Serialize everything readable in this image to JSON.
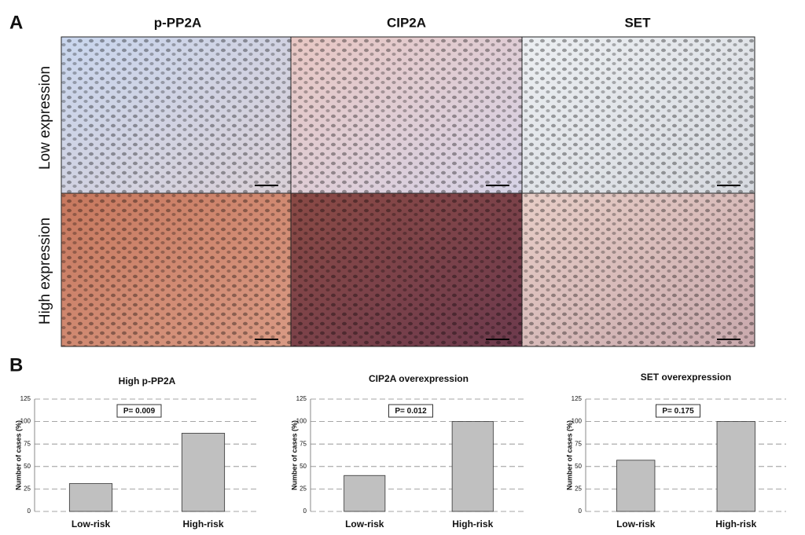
{
  "panel_a": {
    "label": "A",
    "columns": [
      "p-PP2A",
      "CIP2A",
      "SET"
    ],
    "rows": [
      "Low expression",
      "High expression"
    ]
  },
  "panel_b": {
    "label": "B"
  },
  "chart_data": [
    {
      "type": "bar",
      "title": "High p-PP2A",
      "y_label": "Number of cases (%)",
      "categories": [
        "Low-risk",
        "High-risk"
      ],
      "values": [
        31,
        87
      ],
      "color": "#c0c0c0",
      "ylim": [
        0,
        125
      ],
      "yticks": [
        0,
        25,
        50,
        75,
        100,
        125
      ],
      "grid": true,
      "annotation": "P= 0.009"
    },
    {
      "type": "bar",
      "title": "CIP2A overexpression",
      "y_label": "Number of cases (%)",
      "categories": [
        "Low-risk",
        "High-risk"
      ],
      "values": [
        40,
        100
      ],
      "color": "#c0c0c0",
      "ylim": [
        0,
        125
      ],
      "yticks": [
        0,
        25,
        50,
        75,
        100,
        125
      ],
      "grid": true,
      "annotation": "P= 0.012"
    },
    {
      "type": "bar",
      "title": "SET overexpression",
      "y_label": "Number of cases (%)",
      "categories": [
        "Low-risk",
        "High-risk"
      ],
      "values": [
        57,
        100
      ],
      "color": "#c0c0c0",
      "ylim": [
        0,
        125
      ],
      "yticks": [
        0,
        25,
        50,
        75,
        100,
        125
      ],
      "grid": true,
      "annotation": "P= 0.175"
    }
  ]
}
